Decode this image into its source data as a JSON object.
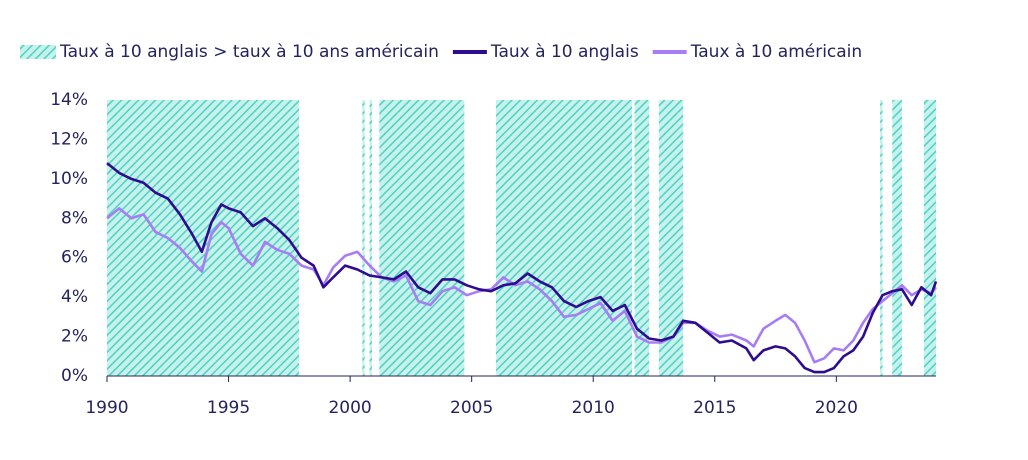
{
  "chart_data": {
    "type": "line",
    "x": [
      1990,
      1990.5,
      1991,
      1991.5,
      1992,
      1992.5,
      1993,
      1993.5,
      1993.9,
      1994.3,
      1994.7,
      1995,
      1995.5,
      1996,
      1996.5,
      1997,
      1997.5,
      1998,
      1998.5,
      1998.9,
      1999.3,
      1999.8,
      2000.3,
      2000.8,
      2001.3,
      2001.8,
      2002.3,
      2002.8,
      2003.3,
      2003.8,
      2004.3,
      2004.8,
      2005.3,
      2005.8,
      2006.3,
      2006.8,
      2007.3,
      2007.8,
      2008.3,
      2008.8,
      2009.3,
      2009.8,
      2010.3,
      2010.8,
      2011.3,
      2011.8,
      2012.3,
      2012.8,
      2013.3,
      2013.7,
      2014.2,
      2014.7,
      2015.2,
      2015.7,
      2016.3,
      2016.6,
      2017,
      2017.5,
      2017.9,
      2018.3,
      2018.7,
      2019.1,
      2019.5,
      2019.9,
      2020.3,
      2020.7,
      2021.1,
      2021.5,
      2021.9,
      2022.3,
      2022.7,
      2023.1,
      2023.5,
      2023.9,
      2024.1
    ],
    "series": [
      {
        "name": "Taux à 10 anglais",
        "color": "#2e0c8f",
        "values": [
          10.8,
          10.3,
          10.0,
          9.8,
          9.3,
          9.0,
          8.2,
          7.2,
          6.3,
          7.8,
          8.7,
          8.5,
          8.3,
          7.6,
          8.0,
          7.5,
          6.9,
          6.0,
          5.6,
          4.5,
          5.0,
          5.6,
          5.4,
          5.1,
          5.0,
          4.9,
          5.3,
          4.5,
          4.2,
          4.9,
          4.9,
          4.6,
          4.4,
          4.3,
          4.6,
          4.7,
          5.2,
          4.8,
          4.5,
          3.8,
          3.5,
          3.8,
          4.0,
          3.3,
          3.6,
          2.4,
          1.9,
          1.8,
          2.0,
          2.8,
          2.7,
          2.2,
          1.7,
          1.8,
          1.4,
          0.8,
          1.3,
          1.5,
          1.4,
          1.0,
          0.4,
          0.2,
          0.2,
          0.4,
          1.0,
          1.3,
          2.0,
          3.2,
          4.1,
          4.3,
          4.4,
          3.6,
          4.5,
          4.1,
          4.8
        ]
      },
      {
        "name": "Taux à 10 américain",
        "color": "#a87cf5",
        "values": [
          8.0,
          8.5,
          8.0,
          8.2,
          7.3,
          7.0,
          6.5,
          5.8,
          5.3,
          7.2,
          7.8,
          7.5,
          6.2,
          5.6,
          6.8,
          6.4,
          6.2,
          5.6,
          5.4,
          4.6,
          5.5,
          6.1,
          6.3,
          5.6,
          5.0,
          4.8,
          5.1,
          3.8,
          3.6,
          4.3,
          4.5,
          4.1,
          4.3,
          4.4,
          5.0,
          4.6,
          4.8,
          4.4,
          3.8,
          3.0,
          3.1,
          3.4,
          3.7,
          2.8,
          3.3,
          2.0,
          1.7,
          1.7,
          2.0,
          2.7,
          2.7,
          2.3,
          2.0,
          2.1,
          1.8,
          1.5,
          2.4,
          2.8,
          3.1,
          2.7,
          1.8,
          0.7,
          0.9,
          1.4,
          1.3,
          1.8,
          2.7,
          3.4,
          3.8,
          4.2,
          4.6,
          4.1,
          4.4,
          4.2,
          4.5
        ]
      }
    ],
    "shaded": {
      "name": "Taux à 10 anglais > taux à 10 ans américain",
      "color": "#4fd1c5",
      "periods": [
        [
          1990,
          1997.9
        ],
        [
          2000.5,
          2000.6
        ],
        [
          2000.8,
          2000.9
        ],
        [
          2001.2,
          2004.7
        ],
        [
          2006.0,
          2011.6
        ],
        [
          2011.7,
          2012.3
        ],
        [
          2012.7,
          2013.7
        ],
        [
          2021.8,
          2021.9
        ],
        [
          2022.3,
          2022.7
        ],
        [
          2023.6,
          2024.1
        ]
      ]
    },
    "xlim": [
      1990,
      2024.1
    ],
    "xticks": [
      1990,
      1995,
      2000,
      2005,
      2010,
      2015,
      2020
    ],
    "ylim": [
      0,
      14
    ],
    "yticks": [
      {
        "value": 0,
        "label": "0%"
      },
      {
        "value": 2,
        "label": "2%"
      },
      {
        "value": 4,
        "label": "4%"
      },
      {
        "value": 6,
        "label": "6%"
      },
      {
        "value": 8,
        "label": "8%"
      },
      {
        "value": 10,
        "label": "10%"
      },
      {
        "value": 12,
        "label": "12%"
      },
      {
        "value": 14,
        "label": "14%"
      }
    ],
    "grid": false
  }
}
